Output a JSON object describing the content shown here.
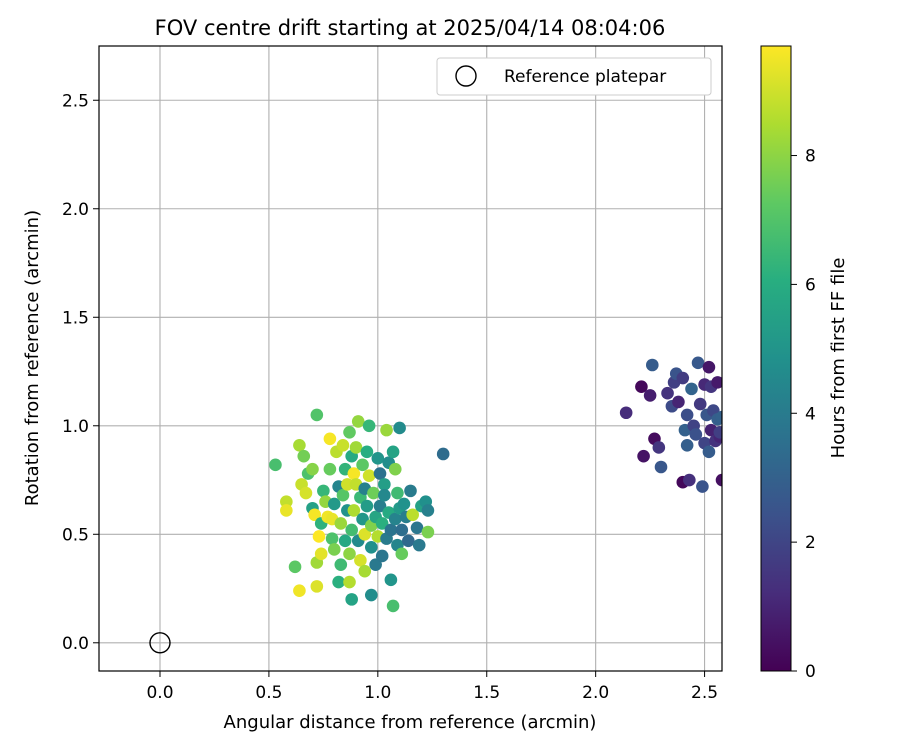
{
  "chart_data": {
    "type": "scatter",
    "title": "FOV centre drift starting at 2025/04/14 08:04:06",
    "xlabel": "Angular distance from reference (arcmin)",
    "ylabel": "Rotation from reference (arcmin)",
    "xlim": [
      -0.28,
      2.58
    ],
    "ylim": [
      -0.13,
      2.75
    ],
    "xticks": [
      0.0,
      0.5,
      1.0,
      1.5,
      2.0,
      2.5
    ],
    "xtick_labels": [
      "0.0",
      "0.5",
      "1.0",
      "1.5",
      "2.0",
      "2.5"
    ],
    "yticks": [
      0.0,
      0.5,
      1.0,
      1.5,
      2.0,
      2.5
    ],
    "ytick_labels": [
      "0.0",
      "0.5",
      "1.0",
      "1.5",
      "2.0",
      "2.5"
    ],
    "grid": true,
    "legend": {
      "position": "top-right",
      "entries": [
        "Reference platepar"
      ]
    },
    "reference_point": {
      "x": 0.0,
      "y": 0.0,
      "marker": "open-circle"
    },
    "colorbar": {
      "label": "Hours from first FF file",
      "colormap": "viridis",
      "range": [
        0,
        9.7
      ],
      "ticks": [
        0,
        2,
        4,
        6,
        8
      ],
      "tick_labels": [
        "0",
        "2",
        "4",
        "6",
        "8"
      ]
    },
    "series": [
      {
        "columns": [
          "x",
          "y",
          "hours"
        ],
        "points": [
          [
            2.14,
            1.06,
            1.2
          ],
          [
            2.21,
            1.18,
            0.2
          ],
          [
            2.22,
            0.86,
            0.5
          ],
          [
            2.25,
            1.14,
            0.8
          ],
          [
            2.26,
            1.28,
            2.8
          ],
          [
            2.27,
            0.94,
            0.3
          ],
          [
            2.29,
            0.9,
            1.5
          ],
          [
            2.3,
            0.81,
            2.6
          ],
          [
            2.33,
            1.15,
            1.4
          ],
          [
            2.35,
            1.09,
            2.2
          ],
          [
            2.36,
            1.2,
            1.8
          ],
          [
            2.37,
            1.24,
            2.5
          ],
          [
            2.38,
            1.11,
            1.0
          ],
          [
            2.4,
            1.22,
            1.7
          ],
          [
            2.4,
            0.74,
            0.2
          ],
          [
            2.41,
            0.98,
            3.0
          ],
          [
            2.42,
            1.05,
            2.3
          ],
          [
            2.42,
            0.91,
            2.9
          ],
          [
            2.43,
            0.75,
            1.3
          ],
          [
            2.44,
            1.17,
            3.1
          ],
          [
            2.45,
            1.0,
            1.9
          ],
          [
            2.46,
            0.96,
            2.4
          ],
          [
            2.47,
            1.29,
            2.7
          ],
          [
            2.48,
            1.1,
            1.6
          ],
          [
            2.49,
            0.72,
            2.5
          ],
          [
            2.5,
            1.19,
            1.1
          ],
          [
            2.5,
            0.92,
            2.0
          ],
          [
            2.51,
            1.05,
            2.6
          ],
          [
            2.52,
            1.27,
            0.6
          ],
          [
            2.52,
            0.88,
            2.8
          ],
          [
            2.53,
            1.18,
            1.5
          ],
          [
            2.53,
            0.98,
            0.9
          ],
          [
            2.54,
            1.07,
            2.1
          ],
          [
            2.55,
            0.93,
            1.4
          ],
          [
            2.56,
            1.2,
            0.7
          ],
          [
            2.56,
            1.03,
            2.9
          ],
          [
            2.57,
            0.95,
            1.0
          ],
          [
            2.57,
            0.97,
            1.8
          ],
          [
            2.58,
            1.04,
            3.0
          ],
          [
            2.58,
            0.75,
            0.4
          ],
          [
            0.53,
            0.82,
            6.8
          ],
          [
            0.58,
            0.65,
            8.8
          ],
          [
            0.58,
            0.61,
            9.4
          ],
          [
            0.62,
            0.35,
            7.2
          ],
          [
            0.64,
            0.91,
            8.4
          ],
          [
            0.64,
            0.24,
            9.5
          ],
          [
            0.65,
            0.73,
            8.9
          ],
          [
            0.66,
            0.86,
            7.6
          ],
          [
            0.67,
            0.69,
            9.1
          ],
          [
            0.68,
            0.78,
            6.9
          ],
          [
            0.7,
            0.62,
            5.5
          ],
          [
            0.7,
            0.8,
            7.9
          ],
          [
            0.71,
            0.59,
            9.6
          ],
          [
            0.72,
            1.05,
            7.0
          ],
          [
            0.72,
            0.37,
            8.3
          ],
          [
            0.72,
            0.26,
            9.2
          ],
          [
            0.73,
            0.49,
            9.7
          ],
          [
            0.74,
            0.55,
            6.2
          ],
          [
            0.74,
            0.41,
            9.3
          ],
          [
            0.75,
            0.7,
            6.4
          ],
          [
            0.76,
            0.65,
            8.1
          ],
          [
            0.77,
            0.58,
            9.5
          ],
          [
            0.78,
            0.94,
            9.6
          ],
          [
            0.78,
            0.8,
            7.4
          ],
          [
            0.79,
            0.48,
            6.9
          ],
          [
            0.79,
            0.57,
            9.4
          ],
          [
            0.8,
            0.64,
            5.2
          ],
          [
            0.8,
            0.43,
            7.7
          ],
          [
            0.81,
            0.88,
            8.7
          ],
          [
            0.82,
            0.28,
            6.1
          ],
          [
            0.82,
            0.72,
            4.4
          ],
          [
            0.83,
            0.55,
            8.2
          ],
          [
            0.83,
            0.36,
            6.6
          ],
          [
            0.84,
            0.68,
            7.1
          ],
          [
            0.84,
            0.91,
            8.9
          ],
          [
            0.85,
            0.8,
            6.3
          ],
          [
            0.85,
            0.47,
            5.8
          ],
          [
            0.86,
            0.61,
            4.9
          ],
          [
            0.86,
            0.73,
            9.0
          ],
          [
            0.87,
            0.97,
            7.3
          ],
          [
            0.87,
            0.41,
            8.0
          ],
          [
            0.87,
            0.28,
            8.6
          ],
          [
            0.88,
            0.2,
            5.6
          ],
          [
            0.88,
            0.86,
            5.9
          ],
          [
            0.88,
            0.52,
            6.7
          ],
          [
            0.89,
            0.78,
            9.6
          ],
          [
            0.89,
            0.61,
            8.5
          ],
          [
            0.9,
            0.9,
            8.3
          ],
          [
            0.9,
            0.73,
            8.8
          ],
          [
            0.91,
            1.02,
            8.1
          ],
          [
            0.91,
            0.47,
            4.6
          ],
          [
            0.92,
            0.38,
            9.1
          ],
          [
            0.92,
            0.67,
            6.5
          ],
          [
            0.93,
            0.57,
            5.1
          ],
          [
            0.93,
            0.82,
            7.2
          ],
          [
            0.94,
            0.5,
            9.2
          ],
          [
            0.94,
            0.71,
            4.2
          ],
          [
            0.94,
            0.33,
            8.4
          ],
          [
            0.95,
            0.88,
            6.0
          ],
          [
            0.95,
            0.63,
            5.3
          ],
          [
            0.96,
            1.0,
            6.4
          ],
          [
            0.96,
            0.77,
            9.0
          ],
          [
            0.97,
            0.44,
            4.8
          ],
          [
            0.97,
            0.54,
            7.8
          ],
          [
            0.97,
            0.22,
            4.7
          ],
          [
            0.98,
            0.69,
            7.5
          ],
          [
            0.99,
            0.36,
            3.9
          ],
          [
            0.99,
            0.58,
            5.7
          ],
          [
            1.0,
            0.85,
            5.0
          ],
          [
            1.0,
            0.49,
            8.6
          ],
          [
            1.01,
            0.63,
            4.1
          ],
          [
            1.01,
            0.78,
            3.6
          ],
          [
            1.02,
            0.4,
            3.8
          ],
          [
            1.02,
            0.55,
            6.1
          ],
          [
            1.03,
            0.73,
            5.4
          ],
          [
            1.03,
            0.68,
            4.5
          ],
          [
            1.04,
            0.98,
            8.2
          ],
          [
            1.04,
            0.48,
            4.0
          ],
          [
            1.05,
            0.6,
            5.9
          ],
          [
            1.05,
            0.83,
            4.7
          ],
          [
            1.06,
            0.52,
            3.7
          ],
          [
            1.06,
            0.29,
            5.0
          ],
          [
            1.07,
            0.88,
            5.6
          ],
          [
            1.07,
            0.17,
            6.8
          ],
          [
            1.08,
            0.57,
            4.3
          ],
          [
            1.08,
            0.8,
            7.8
          ],
          [
            1.09,
            0.69,
            6.6
          ],
          [
            1.09,
            0.45,
            4.4
          ],
          [
            1.1,
            0.99,
            4.6
          ],
          [
            1.1,
            0.62,
            5.2
          ],
          [
            1.11,
            0.41,
            7.4
          ],
          [
            1.11,
            0.52,
            3.5
          ],
          [
            1.12,
            0.64,
            4.9
          ],
          [
            1.13,
            0.58,
            4.1
          ],
          [
            1.14,
            0.47,
            3.3
          ],
          [
            1.15,
            0.7,
            4.0
          ],
          [
            1.16,
            0.59,
            8.7
          ],
          [
            1.18,
            0.53,
            3.8
          ],
          [
            1.19,
            0.45,
            3.9
          ],
          [
            1.2,
            0.63,
            5.5
          ],
          [
            1.22,
            0.65,
            4.8
          ],
          [
            1.23,
            0.61,
            4.2
          ],
          [
            1.23,
            0.51,
            7.7
          ],
          [
            1.3,
            0.87,
            3.4
          ]
        ]
      }
    ]
  }
}
